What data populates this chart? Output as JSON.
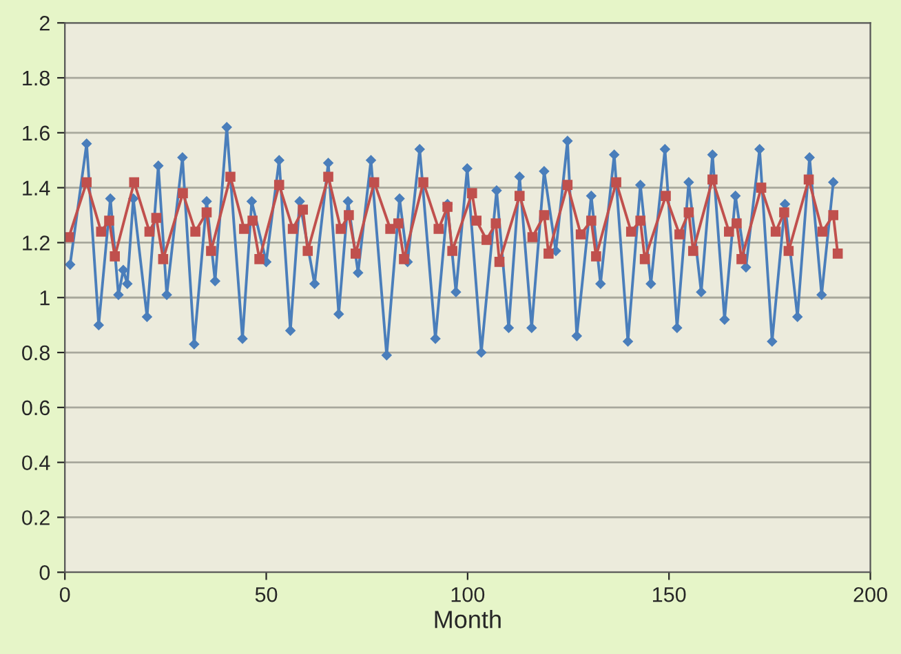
{
  "chart_data": {
    "type": "line",
    "xlabel": "Month",
    "xlim": [
      0,
      200
    ],
    "xticks": [
      0,
      50,
      100,
      150,
      200
    ],
    "ylim": [
      0,
      2
    ],
    "yticks": [
      0,
      0.2,
      0.4,
      0.6,
      0.8,
      1,
      1.2,
      1.4,
      1.6,
      1.8,
      2
    ],
    "grid": "y",
    "line_style": "solid",
    "series": [
      {
        "color": "#4a7ebb",
        "marker": "diamond",
        "x": [
          1.3,
          5.4,
          8.4,
          11.3,
          13.3,
          14.5,
          15.5,
          17,
          20.4,
          23.2,
          25.3,
          29.2,
          32.1,
          35.2,
          37.3,
          40.2,
          44.1,
          46.4,
          50,
          53.2,
          56,
          58.3,
          62,
          65.4,
          68,
          70.3,
          72.8,
          76,
          79.9,
          83.1,
          85.1,
          88.1,
          92,
          95,
          97.1,
          99.9,
          103.4,
          107.2,
          110.2,
          112.9,
          115.9,
          119,
          121.9,
          124.8,
          127.1,
          130.7,
          133,
          136.4,
          139.8,
          142.9,
          145.5,
          149,
          152,
          154.9,
          158,
          160.8,
          163.8,
          166.5,
          169.1,
          172.5,
          175.6,
          178.8,
          181.9,
          184.9,
          187.9,
          190.8
        ],
        "values": [
          1.12,
          1.56,
          0.9,
          1.36,
          1.01,
          1.1,
          1.05,
          1.36,
          0.93,
          1.48,
          1.01,
          1.51,
          0.83,
          1.35,
          1.06,
          1.62,
          0.85,
          1.35,
          1.13,
          1.5,
          0.88,
          1.35,
          1.05,
          1.49,
          0.94,
          1.35,
          1.09,
          1.5,
          0.79,
          1.36,
          1.13,
          1.54,
          0.85,
          1.34,
          1.02,
          1.47,
          0.8,
          1.39,
          0.89,
          1.44,
          0.89,
          1.46,
          1.17,
          1.57,
          0.86,
          1.37,
          1.05,
          1.52,
          0.84,
          1.41,
          1.05,
          1.54,
          0.89,
          1.42,
          1.02,
          1.52,
          0.92,
          1.37,
          1.11,
          1.54,
          0.84,
          1.34,
          0.93,
          1.51,
          1.01,
          1.42
        ]
      },
      {
        "color": "#c0504d",
        "marker": "square",
        "x": [
          1,
          5.4,
          9,
          11,
          12.4,
          17.2,
          21,
          22.7,
          24.4,
          29.3,
          32.4,
          35.2,
          36.3,
          41.1,
          44.5,
          46.6,
          48.3,
          53.2,
          56.6,
          59.1,
          60.3,
          65.4,
          68.5,
          70.5,
          72.2,
          76.8,
          80.8,
          82.8,
          84.2,
          89,
          92.8,
          95,
          96.2,
          101.1,
          102.2,
          104.7,
          107,
          107.9,
          112.9,
          116.1,
          119,
          120.1,
          124.8,
          128.1,
          130.7,
          131.9,
          136.9,
          140.6,
          142.9,
          144,
          149.2,
          152.6,
          154.9,
          156,
          160.8,
          164.9,
          166.8,
          168,
          172.9,
          176.5,
          178.6,
          179.7,
          184.7,
          188.1,
          190.8,
          191.9
        ],
        "values": [
          1.22,
          1.42,
          1.24,
          1.28,
          1.15,
          1.42,
          1.24,
          1.29,
          1.14,
          1.38,
          1.24,
          1.31,
          1.17,
          1.44,
          1.25,
          1.28,
          1.14,
          1.41,
          1.25,
          1.32,
          1.17,
          1.44,
          1.25,
          1.3,
          1.16,
          1.42,
          1.25,
          1.27,
          1.14,
          1.42,
          1.25,
          1.33,
          1.17,
          1.38,
          1.28,
          1.21,
          1.27,
          1.13,
          1.37,
          1.22,
          1.3,
          1.16,
          1.41,
          1.23,
          1.28,
          1.15,
          1.42,
          1.24,
          1.28,
          1.14,
          1.37,
          1.23,
          1.31,
          1.17,
          1.43,
          1.24,
          1.27,
          1.14,
          1.4,
          1.24,
          1.31,
          1.17,
          1.43,
          1.24,
          1.3,
          1.16
        ]
      }
    ]
  }
}
